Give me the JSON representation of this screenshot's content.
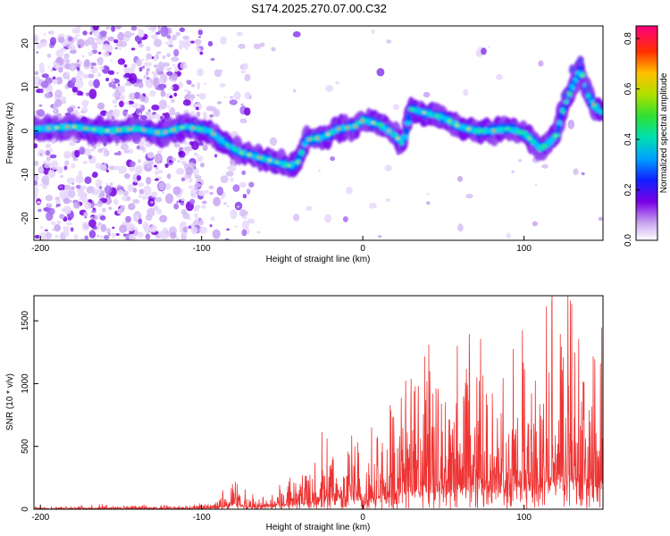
{
  "title": "S174.2025.270.07.00.C32",
  "colors": {
    "snr_line": "#ee3333",
    "axis": "#000000",
    "background": "#ffffff"
  },
  "chart_data": [
    {
      "type": "heatmap",
      "xlabel": "Height of straight line (km)",
      "ylabel": "Frequency (Hz)",
      "xlim": [
        -204,
        149
      ],
      "ylim": [
        -25,
        24
      ],
      "xticks": [
        -200,
        -100,
        0,
        100
      ],
      "xtick_labels": [
        "-200",
        "-100",
        "0",
        "100"
      ],
      "yticks": [
        -20,
        -10,
        0,
        10,
        20
      ],
      "ytick_labels": [
        "-20",
        "-10",
        "0",
        "10",
        "20"
      ],
      "colorbar": {
        "label": "Normalized spectral amplitude",
        "range": [
          0,
          0.85
        ],
        "ticks": [
          0.0,
          0.2,
          0.4,
          0.6,
          0.8
        ],
        "tick_labels": [
          "0.0",
          "0.2",
          "0.4",
          "0.6",
          "0.8"
        ]
      },
      "ridge": {
        "x": [
          -200,
          -180,
          -160,
          -140,
          -125,
          -110,
          -95,
          -85,
          -75,
          -65,
          -55,
          -45,
          -40,
          -35,
          -25,
          -15,
          -5,
          0,
          10,
          20,
          25,
          30,
          40,
          50,
          60,
          70,
          80,
          90,
          100,
          110,
          115,
          120,
          125,
          130,
          135,
          140,
          145,
          149
        ],
        "y": [
          0.5,
          1,
          0,
          0.5,
          -0.5,
          1,
          0,
          -3,
          -5,
          -6,
          -7,
          -8,
          -7,
          -2,
          -1.5,
          0.5,
          1,
          2.5,
          1.5,
          -1,
          -3,
          5,
          4,
          3,
          1,
          0,
          0,
          0.5,
          -0.5,
          -4,
          -3,
          -1,
          6,
          10,
          14,
          8,
          5,
          4
        ]
      }
    },
    {
      "type": "line",
      "xlabel": "Height of straight line (km)",
      "ylabel": "SNR (10 * v/v)",
      "xlim": [
        -204,
        149
      ],
      "ylim": [
        0,
        1700
      ],
      "xticks": [
        -200,
        -100,
        0,
        100
      ],
      "xtick_labels": [
        "-200",
        "-100",
        "0",
        "100"
      ],
      "yticks": [
        0,
        500,
        1000,
        1500
      ],
      "ytick_labels": [
        "0",
        "500",
        "1000",
        "1500"
      ],
      "envelope": {
        "x": [
          -204,
          -180,
          -160,
          -140,
          -120,
          -100,
          -90,
          -82,
          -78,
          -72,
          -65,
          -55,
          -45,
          -35,
          -25,
          -15,
          -5,
          0,
          10,
          20,
          30,
          40,
          50,
          60,
          70,
          80,
          90,
          100,
          110,
          120,
          130,
          140,
          149
        ],
        "y": [
          15,
          20,
          25,
          25,
          20,
          30,
          60,
          150,
          200,
          100,
          80,
          150,
          180,
          250,
          400,
          450,
          550,
          300,
          500,
          650,
          800,
          850,
          750,
          850,
          900,
          850,
          850,
          900,
          1000,
          1150,
          1300,
          1100,
          900
        ]
      }
    }
  ]
}
